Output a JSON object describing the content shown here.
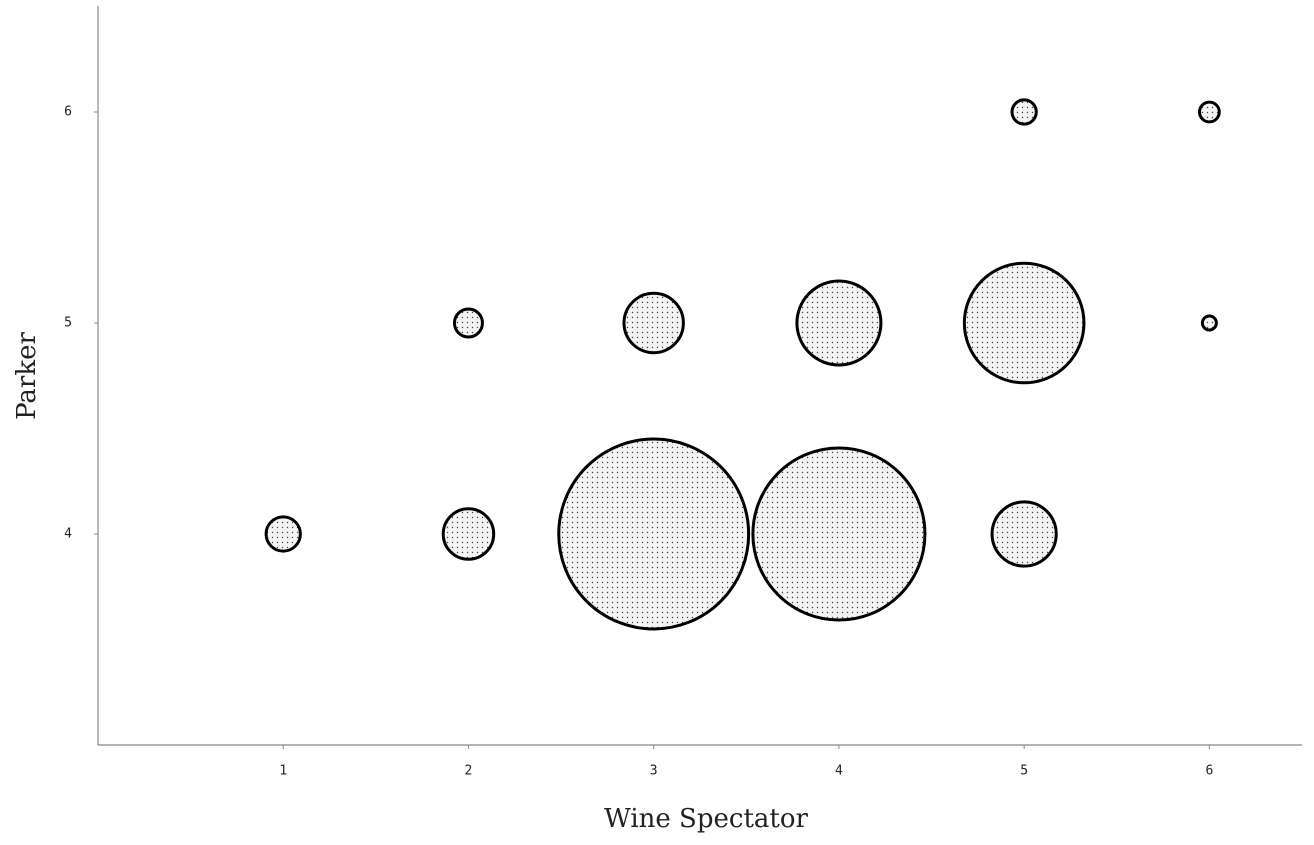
{
  "chart_data": {
    "type": "bubble",
    "x_label": "Wine Spectator",
    "y_label": "Parker",
    "x": [
      1,
      2,
      3,
      4,
      5,
      2,
      3,
      4,
      5,
      6,
      5,
      6
    ],
    "y": [
      4,
      4,
      4,
      4,
      4,
      5,
      5,
      5,
      5,
      5,
      6,
      6
    ],
    "size": [
      6,
      13,
      184,
      151,
      21,
      4,
      18,
      36,
      73,
      1,
      3,
      2
    ],
    "color": "#000000",
    "xlim": [
      0,
      6.5
    ],
    "ylim": [
      3,
      6.5
    ],
    "xticks": [
      1,
      2,
      3,
      4,
      5,
      6
    ],
    "yticks": [
      4,
      5,
      6
    ],
    "grid": false
  }
}
